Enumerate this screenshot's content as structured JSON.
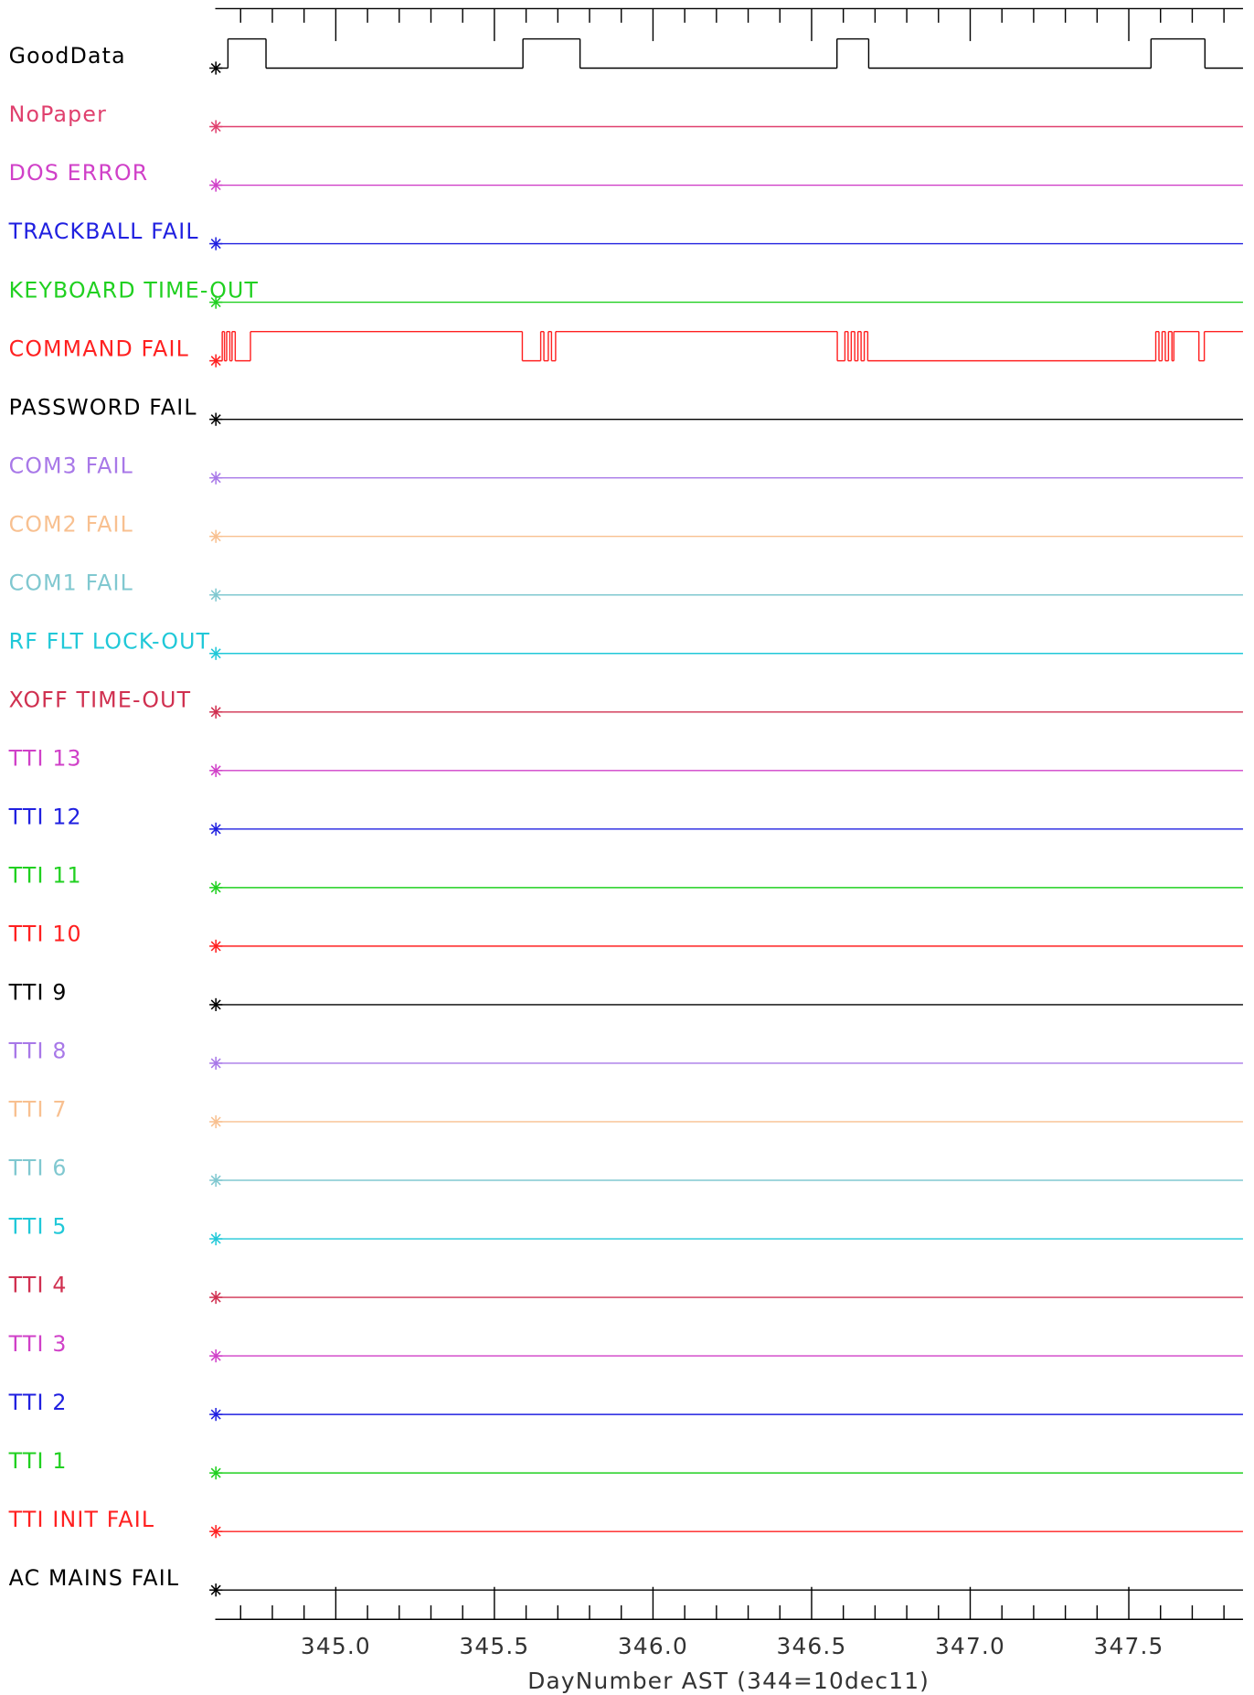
{
  "chart_data": {
    "type": "digital-timeline",
    "x_label": "DayNumber AST (344=10dec11)",
    "xlim": [
      344.62,
      347.86
    ],
    "xticks": [
      {
        "value": 345,
        "label": "345.0"
      },
      345.5,
      {
        "value": 346,
        "label": "346.0"
      },
      346.5,
      {
        "value": 347,
        "label": "347.0"
      },
      347.5
    ],
    "xminorticks": [
      344.7,
      344.8,
      344.9,
      345.1,
      345.2,
      345.3,
      345.4,
      345.6,
      345.7,
      345.8,
      345.9,
      346.1,
      346.2,
      346.3,
      346.4,
      346.6,
      346.7,
      346.8,
      346.9,
      347.1,
      347.2,
      347.3,
      347.4,
      347.6,
      347.7,
      347.8
    ],
    "series": [
      {
        "name": "GoodData",
        "color": "#000000",
        "x": [
          344.622,
          344.66,
          344.78,
          345.59,
          345.77,
          346.58,
          346.68,
          347.57,
          347.74
        ],
        "values": [
          0,
          1,
          0,
          1,
          0,
          1,
          0,
          1,
          0
        ]
      },
      {
        "name": "NoPaper",
        "color": "#e0406e",
        "x": [
          344.622
        ],
        "values": [
          0
        ]
      },
      {
        "name": "DOS ERROR",
        "color": "#d040c8",
        "x": [
          344.622
        ],
        "values": [
          0
        ]
      },
      {
        "name": "TRACKBALL FAIL",
        "color": "#2020e0",
        "x": [
          344.622
        ],
        "values": [
          0
        ]
      },
      {
        "name": "KEYBOARD TIME-OUT",
        "color": "#20d020",
        "x": [
          344.622
        ],
        "values": [
          0
        ]
      },
      {
        "name": "COMMAND FAIL",
        "color": "#ff2020",
        "x": [
          344.622,
          344.642,
          344.649,
          344.656,
          344.666,
          344.673,
          344.683,
          344.731,
          345.588,
          345.646,
          345.656,
          345.67,
          345.68,
          345.693,
          346.581,
          346.605,
          346.615,
          346.625,
          346.636,
          346.646,
          346.656,
          346.666,
          346.677,
          347.585,
          347.595,
          347.605,
          347.615,
          347.625,
          347.636,
          347.642,
          347.721,
          347.738
        ],
        "values": [
          0,
          1,
          0,
          1,
          0,
          1,
          0,
          1,
          0,
          1,
          0,
          1,
          0,
          1,
          0,
          1,
          0,
          1,
          0,
          1,
          0,
          1,
          0,
          1,
          0,
          1,
          0,
          1,
          0,
          1,
          0,
          1
        ]
      },
      {
        "name": "PASSWORD FAIL",
        "color": "#000000",
        "x": [
          344.622
        ],
        "values": [
          0
        ]
      },
      {
        "name": "COM3 FAIL",
        "color": "#a878e8",
        "x": [
          344.622
        ],
        "values": [
          0
        ]
      },
      {
        "name": "COM2 FAIL",
        "color": "#f8c090",
        "x": [
          344.622
        ],
        "values": [
          0
        ]
      },
      {
        "name": "COM1 FAIL",
        "color": "#80c8d0",
        "x": [
          344.622
        ],
        "values": [
          0
        ]
      },
      {
        "name": "RF FLT LOCK-OUT",
        "color": "#20c8d8",
        "x": [
          344.622
        ],
        "values": [
          0
        ]
      },
      {
        "name": "XOFF TIME-OUT",
        "color": "#d03050",
        "x": [
          344.622
        ],
        "values": [
          0
        ]
      },
      {
        "name": "TTI 13",
        "color": "#d040c8",
        "x": [
          344.622
        ],
        "values": [
          0
        ]
      },
      {
        "name": "TTI 12",
        "color": "#2020e0",
        "x": [
          344.622
        ],
        "values": [
          0
        ]
      },
      {
        "name": "TTI 11",
        "color": "#20d020",
        "x": [
          344.622
        ],
        "values": [
          0
        ]
      },
      {
        "name": "TTI 10",
        "color": "#ff2020",
        "x": [
          344.622
        ],
        "values": [
          0
        ]
      },
      {
        "name": "TTI 9",
        "color": "#000000",
        "x": [
          344.622
        ],
        "values": [
          0
        ]
      },
      {
        "name": "TTI 8",
        "color": "#a878e8",
        "x": [
          344.622
        ],
        "values": [
          0
        ]
      },
      {
        "name": "TTI 7",
        "color": "#f8c090",
        "x": [
          344.622
        ],
        "values": [
          0
        ]
      },
      {
        "name": "TTI 6",
        "color": "#80c8d0",
        "x": [
          344.622
        ],
        "values": [
          0
        ]
      },
      {
        "name": "TTI 5",
        "color": "#20c8d8",
        "x": [
          344.622
        ],
        "values": [
          0
        ]
      },
      {
        "name": "TTI 4",
        "color": "#d03050",
        "x": [
          344.622
        ],
        "values": [
          0
        ]
      },
      {
        "name": "TTI 3",
        "color": "#d040c8",
        "x": [
          344.622
        ],
        "values": [
          0
        ]
      },
      {
        "name": "TTI 2",
        "color": "#2020e0",
        "x": [
          344.622
        ],
        "values": [
          0
        ]
      },
      {
        "name": "TTI 1",
        "color": "#20d020",
        "x": [
          344.622
        ],
        "values": [
          0
        ]
      },
      {
        "name": "TTI INIT FAIL",
        "color": "#ff2020",
        "x": [
          344.622
        ],
        "values": [
          0
        ]
      },
      {
        "name": "AC MAINS FAIL",
        "color": "#000000",
        "x": [
          344.622
        ],
        "values": [
          0
        ]
      }
    ]
  }
}
